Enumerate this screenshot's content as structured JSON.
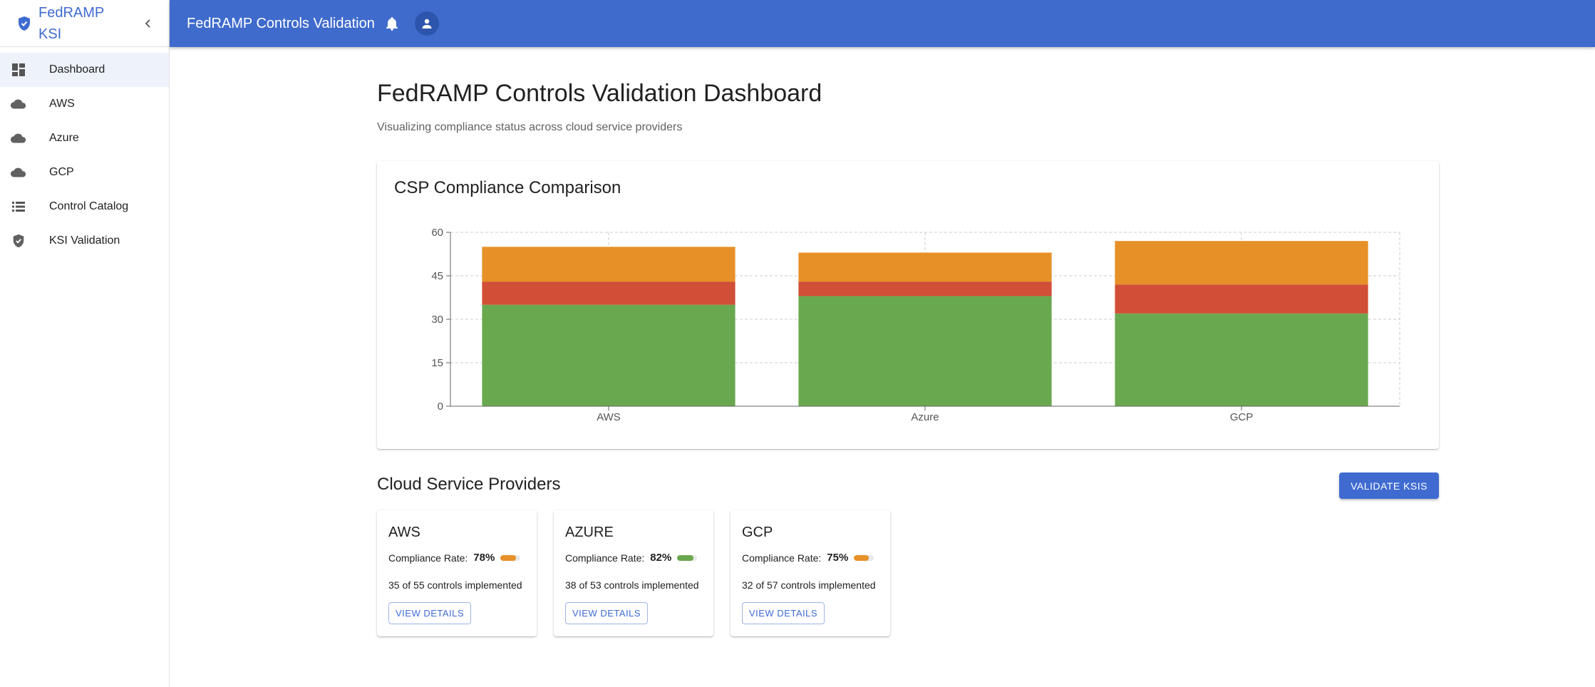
{
  "sidebar": {
    "brand": "FedRAMP KSI",
    "brand_icon": "shield-check-icon",
    "collapse_icon": "chevron-left-icon",
    "items": [
      {
        "label": "Dashboard",
        "icon": "dashboard-icon",
        "active": true
      },
      {
        "label": "AWS",
        "icon": "cloud-icon",
        "active": false
      },
      {
        "label": "Azure",
        "icon": "cloud-icon",
        "active": false
      },
      {
        "label": "GCP",
        "icon": "cloud-icon",
        "active": false
      },
      {
        "label": "Control Catalog",
        "icon": "list-icon",
        "active": false
      },
      {
        "label": "KSI Validation",
        "icon": "shield-check-icon",
        "active": false
      }
    ]
  },
  "topbar": {
    "title": "FedRAMP Controls Validation",
    "bell_icon": "bell-icon",
    "avatar_icon": "person-icon",
    "background": "#3f6bcc"
  },
  "main": {
    "title": "FedRAMP Controls Validation Dashboard",
    "subtitle": "Visualizing compliance status across cloud service providers",
    "chart_title": "CSP Compliance Comparison",
    "section_title": "Cloud Service Providers",
    "validate_label": "VALIDATE KSIS"
  },
  "colors": {
    "implemented": "#6aa84f",
    "failed": "#d04f36",
    "pending": "#e69027",
    "accent": "#3f6bd1"
  },
  "chart_data": {
    "type": "bar",
    "stacked": true,
    "categories": [
      "AWS",
      "Azure",
      "GCP"
    ],
    "series": [
      {
        "values": [
          35,
          38,
          32
        ],
        "color": "#6aa84f"
      },
      {
        "values": [
          8,
          5,
          10
        ],
        "color": "#d04f36"
      },
      {
        "values": [
          12,
          10,
          15
        ],
        "color": "#e69027"
      }
    ],
    "yticks": [
      "0",
      "15",
      "30",
      "45",
      "60"
    ],
    "ylim": [
      0,
      60
    ],
    "grid": true,
    "legend": "none"
  },
  "providers": [
    {
      "name": "AWS",
      "rate_label": "Compliance Rate:",
      "rate": "78%",
      "rate_fraction": 0.78,
      "bar_color": "#e69027",
      "controls": "35 of 55 controls implemented",
      "details_label": "VIEW DETAILS"
    },
    {
      "name": "AZURE",
      "rate_label": "Compliance Rate:",
      "rate": "82%",
      "rate_fraction": 0.82,
      "bar_color": "#6aa84f",
      "controls": "38 of 53 controls implemented",
      "details_label": "VIEW DETAILS"
    },
    {
      "name": "GCP",
      "rate_label": "Compliance Rate:",
      "rate": "75%",
      "rate_fraction": 0.75,
      "bar_color": "#e69027",
      "controls": "32 of 57 controls implemented",
      "details_label": "VIEW DETAILS"
    }
  ]
}
